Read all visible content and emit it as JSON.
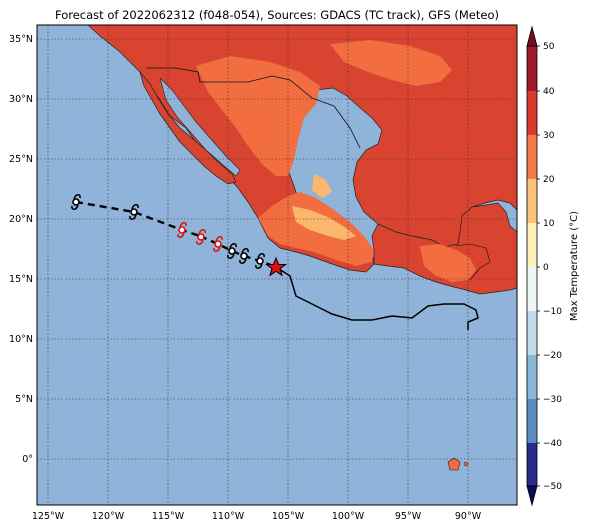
{
  "title": "Forecast of 2022062312 (f048-054), Sources: GDACS (TC track), GFS (Meteo)",
  "lat_labels": [
    "35°N",
    "30°N",
    "25°N",
    "20°N",
    "15°N",
    "10°N",
    "5°N",
    "0°"
  ],
  "lon_labels": [
    "125°W",
    "120°W",
    "115°W",
    "110°W",
    "105°W",
    "100°W",
    "95°W",
    "90°W"
  ],
  "colorbar": {
    "label": "Max Temperature (°C)",
    "ticks": [
      "50",
      "40",
      "30",
      "20",
      "10",
      "0",
      "−10",
      "−20",
      "−30",
      "−40",
      "−50"
    ],
    "colors": [
      "#2b2c8a",
      "#3a5ea8",
      "#5a8cc0",
      "#8cb8d8",
      "#c2dcec",
      "#eef6f8",
      "#fdf1b8",
      "#fbc27a",
      "#f47a48",
      "#d93a2a",
      "#a01a2a"
    ]
  },
  "colors": {
    "ocean": "#8fb3d9",
    "land_hot": "#d84430",
    "land_warm": "#f26d40",
    "land_mild": "#fbb86c",
    "track_forecast": "#e01010",
    "star": "#e01010"
  }
}
